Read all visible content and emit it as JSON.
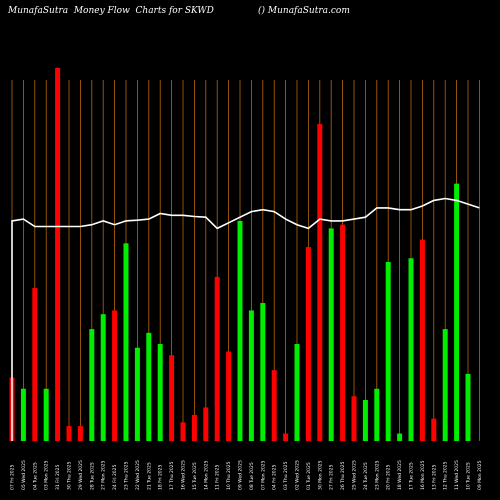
{
  "header": {
    "title": "MunafaSutra  Money Flow  Charts for SKWD",
    "site": "() MunafaSutra.com"
  },
  "chart_data": {
    "type": "bar",
    "title": "MunafaSutra  Money Flow  Charts for SKWD",
    "colors": {
      "buy": "#00ee00",
      "sell": "#ff0000",
      "line": "#ffffff",
      "grid": "#b8660b",
      "background": "#000000"
    },
    "grid": true,
    "categories": [
      "07 Fri 2025",
      "05 Wed 2025",
      "04 Tue 2025",
      "03 Mon 2025",
      "31 Fri 2025",
      "30 Thu 2025",
      "29 Wed 2025",
      "28 Tue 2025",
      "27 Mon 2025",
      "24 Fri 2025",
      "23 Thu 2025",
      "22 Wed 2025",
      "21 Tue 2025",
      "18 Fri 2025",
      "17 Thu 2025",
      "16 Wed 2025",
      "15 Tue 2025",
      "14 Mon 2025",
      "11 Fri 2025",
      "10 Thu 2025",
      "09 Wed 2025",
      "08 Tue 2025",
      "07 Mon 2025",
      "04 Fri 2025",
      "03 Thu 2025",
      "02 Wed 2025",
      "01 Tue 2025",
      "30 Mon 2025",
      "27 Fri 2025",
      "26 Thu 2025",
      "25 Wed 2025",
      "24 Tue 2025",
      "23 Mon 2025",
      "20 Fri 2025",
      "18 Wed 2025",
      "17 Tue 2025",
      "16 Mon 2025",
      "13 Fri 2025",
      "12 Thu 2025",
      "11 Wed 2025",
      "10 Tue 2025",
      "09 Mon 2025"
    ],
    "flow": [
      "sell",
      "buy",
      "sell",
      "buy",
      "sell",
      "sell",
      "sell",
      "buy",
      "buy",
      "sell",
      "buy",
      "buy",
      "buy",
      "buy",
      "sell",
      "sell",
      "sell",
      "sell",
      "sell",
      "sell",
      "buy",
      "buy",
      "buy",
      "sell",
      "sell",
      "buy",
      "sell",
      "sell",
      "buy",
      "sell",
      "sell",
      "buy",
      "buy",
      "buy",
      "buy",
      "buy",
      "sell",
      "sell",
      "buy",
      "buy",
      "buy",
      "sell"
    ],
    "values": [
      17,
      14,
      41,
      14,
      100,
      4,
      4,
      30,
      34,
      35,
      53,
      25,
      29,
      26,
      23,
      5,
      7,
      9,
      44,
      24,
      59,
      35,
      37,
      19,
      2,
      26,
      52,
      85,
      57,
      58,
      12,
      11,
      14,
      48,
      2,
      49,
      54,
      6,
      30,
      69,
      18,
      0
    ],
    "line": [
      59,
      59.5,
      57.5,
      57.5,
      57.5,
      57.5,
      57.5,
      58,
      59,
      58,
      59,
      59.2,
      59.5,
      61,
      60.5,
      60.5,
      60.2,
      60,
      57,
      58.5,
      60,
      61.5,
      62,
      61.5,
      59.5,
      58,
      57,
      59.5,
      59,
      59,
      59.5,
      60,
      62.5,
      62.5,
      62,
      62,
      63,
      64.5,
      65,
      64.5,
      63.5,
      62.5
    ],
    "ylim": [
      0,
      100
    ]
  }
}
